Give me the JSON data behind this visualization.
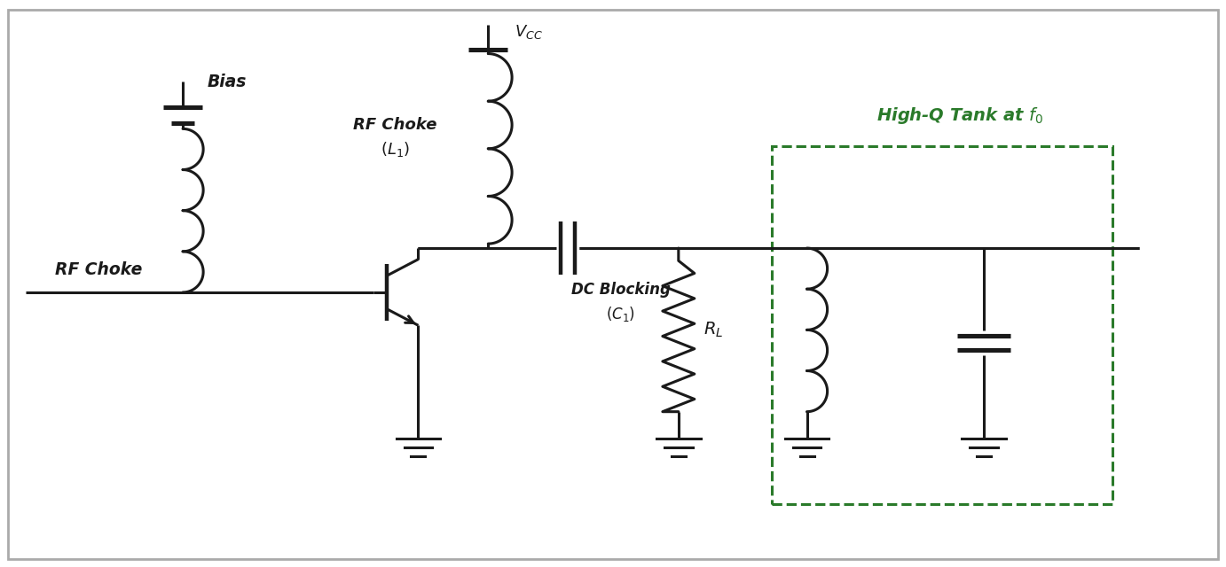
{
  "fig_width": 13.82,
  "fig_height": 6.4,
  "bg_color": "#ffffff",
  "line_color": "#1a1a1a",
  "green_color": "#2a7a2a",
  "line_width": 2.2,
  "border_color": "#999999",
  "labels": {
    "bias": "Bias",
    "rf_choke_left": "RF Choke",
    "rf_choke_mid": "RF Choke\n$(L_1)$",
    "vcc": "$V_{CC}$",
    "dc_blocking": "DC Blocking\n$(C_1)$",
    "rl": "$R_L$",
    "tank": "High-Q Tank at $f_0$"
  }
}
